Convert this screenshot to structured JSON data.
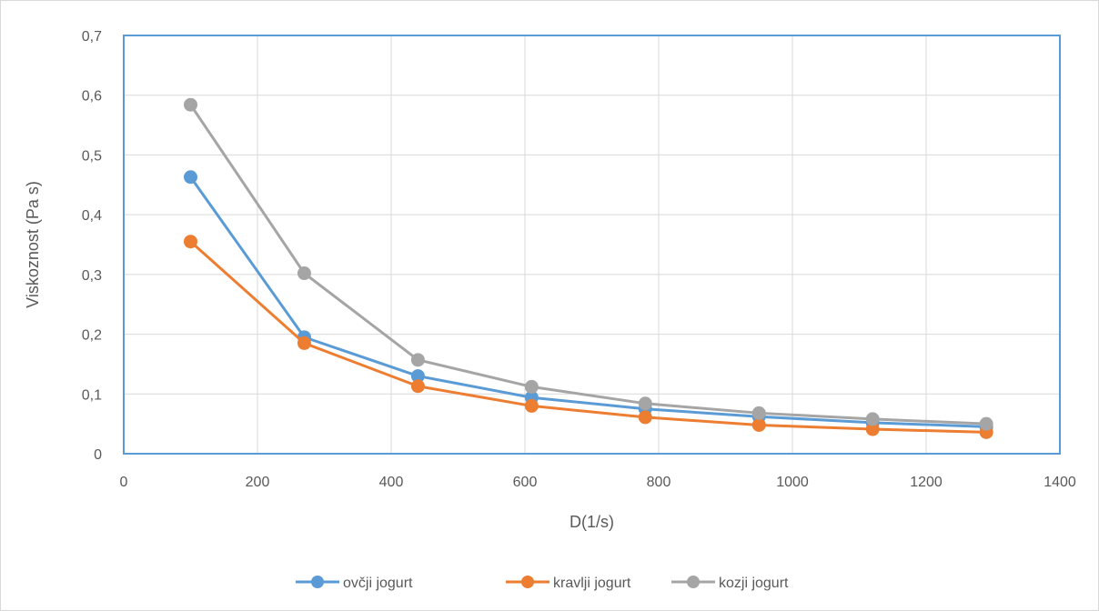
{
  "chart_data": {
    "type": "line",
    "title": "",
    "xlabel": "D(1/s)",
    "ylabel": "Viskoznost (Pa s)",
    "xlim": [
      0,
      1400
    ],
    "ylim": [
      0,
      0.7
    ],
    "x_ticks": [
      "0",
      "200",
      "400",
      "600",
      "800",
      "1000",
      "1200",
      "1400"
    ],
    "y_ticks": [
      "0",
      "0,1",
      "0,2",
      "0,3",
      "0,4",
      "0,5",
      "0,6",
      "0,7"
    ],
    "grid": true,
    "legend_position": "bottom",
    "x": [
      100,
      270,
      440,
      610,
      780,
      950,
      1120,
      1290
    ],
    "series": [
      {
        "name": "ovčji jogurt",
        "color": "#5b9bd5",
        "values": [
          0.463,
          0.195,
          0.13,
          0.094,
          0.075,
          0.062,
          0.052,
          0.045
        ]
      },
      {
        "name": "kravlji jogurt",
        "color": "#ed7d31",
        "values": [
          0.355,
          0.185,
          0.113,
          0.08,
          0.061,
          0.048,
          0.041,
          0.036
        ]
      },
      {
        "name": "kozji jogurt",
        "color": "#a5a5a5",
        "values": [
          0.584,
          0.302,
          0.157,
          0.112,
          0.084,
          0.068,
          0.058,
          0.05
        ]
      }
    ]
  }
}
